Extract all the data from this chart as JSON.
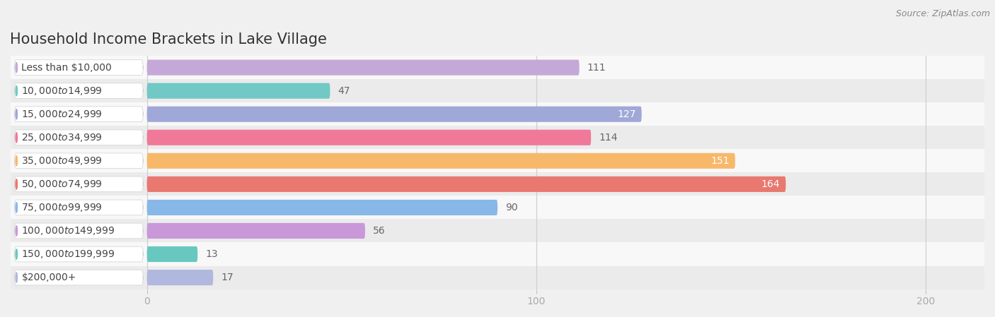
{
  "title": "Household Income Brackets in Lake Village",
  "source": "Source: ZipAtlas.com",
  "categories": [
    "Less than $10,000",
    "$10,000 to $14,999",
    "$15,000 to $24,999",
    "$25,000 to $34,999",
    "$35,000 to $49,999",
    "$50,000 to $74,999",
    "$75,000 to $99,999",
    "$100,000 to $149,999",
    "$150,000 to $199,999",
    "$200,000+"
  ],
  "values": [
    111,
    47,
    127,
    114,
    151,
    164,
    90,
    56,
    13,
    17
  ],
  "bar_colors": [
    "#c5a8d8",
    "#72c8c4",
    "#a0a8d8",
    "#f07898",
    "#f8b86a",
    "#e87870",
    "#88b8e8",
    "#c898d8",
    "#68c8c0",
    "#b0b8e0"
  ],
  "label_inside": [
    false,
    false,
    true,
    false,
    true,
    true,
    false,
    false,
    false,
    false
  ],
  "xlim": [
    -35,
    215
  ],
  "data_xlim": [
    0,
    200
  ],
  "xticks": [
    0,
    100,
    200
  ],
  "background_color": "#f0f0f0",
  "title_fontsize": 15,
  "source_fontsize": 9,
  "label_fontsize": 10,
  "value_fontsize": 10,
  "tick_fontsize": 10,
  "bar_height": 0.65,
  "row_bg_colors": [
    "#f8f8f8",
    "#ebebeb"
  ]
}
